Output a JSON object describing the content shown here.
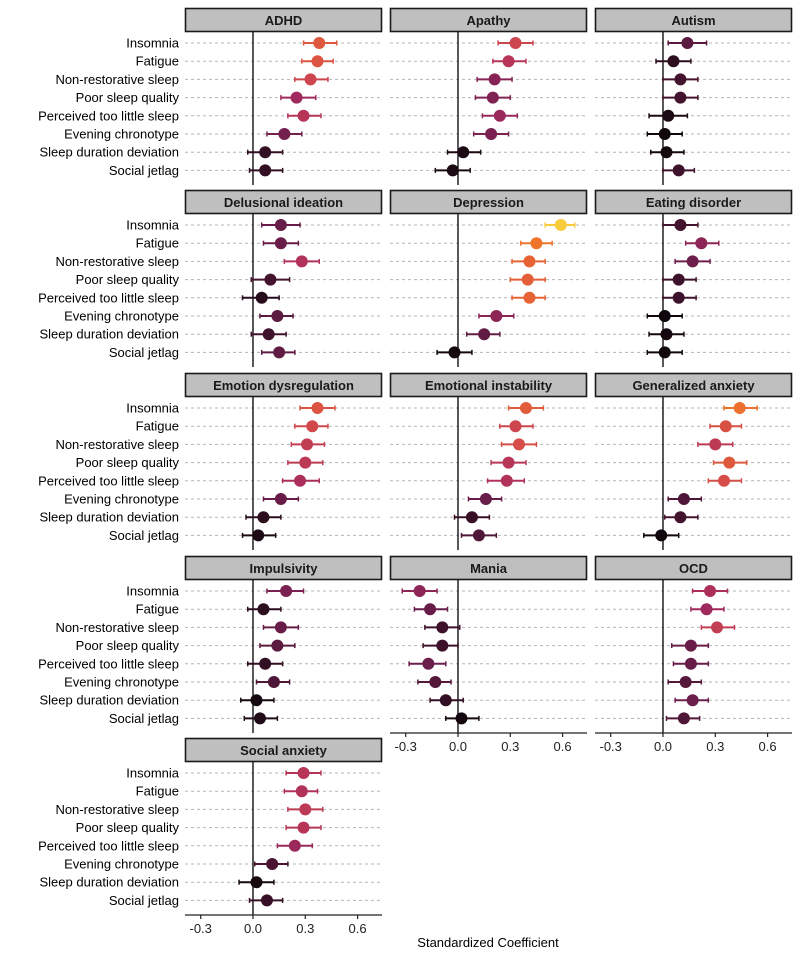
{
  "chart_data": {
    "type": "forest",
    "xlabel": "Standardized Coefficient",
    "xlim": [
      -0.39,
      0.74
    ],
    "xticks": [
      -0.3,
      0.0,
      0.3,
      0.6
    ],
    "xtick_labels": [
      "-0.3",
      "0.0",
      "0.3",
      "0.6"
    ],
    "grid": "dashed horizontal per predictor",
    "reference_line": 0,
    "color_scale": "magma by |estimate|",
    "color_stops": [
      "#0a0608",
      "#3b1128",
      "#6e1f4d",
      "#a52a5e",
      "#d44a4b",
      "#ec6a2e",
      "#f6962a",
      "#f9d23c"
    ],
    "predictors": [
      "Insomnia",
      "Fatigue",
      "Non-restorative sleep",
      "Poor sleep quality",
      "Perceived too little sleep",
      "Evening chronotype",
      "Sleep duration deviation",
      "Social jetlag"
    ],
    "panels": [
      {
        "title": "ADHD",
        "est": [
          0.38,
          0.37,
          0.33,
          0.25,
          0.29,
          0.18,
          0.07,
          0.07
        ],
        "lo": [
          0.29,
          0.28,
          0.24,
          0.16,
          0.2,
          0.08,
          -0.03,
          -0.02
        ],
        "hi": [
          0.48,
          0.46,
          0.43,
          0.36,
          0.39,
          0.28,
          0.17,
          0.17
        ]
      },
      {
        "title": "Apathy",
        "est": [
          0.33,
          0.29,
          0.21,
          0.2,
          0.24,
          0.19,
          0.03,
          -0.03
        ],
        "lo": [
          0.23,
          0.2,
          0.11,
          0.1,
          0.14,
          0.09,
          -0.06,
          -0.13
        ],
        "hi": [
          0.43,
          0.39,
          0.31,
          0.3,
          0.34,
          0.29,
          0.13,
          0.07
        ]
      },
      {
        "title": "Autism",
        "est": [
          0.14,
          0.06,
          0.1,
          0.1,
          0.03,
          0.01,
          0.02,
          0.09
        ],
        "lo": [
          0.03,
          -0.04,
          0.0,
          0.0,
          -0.08,
          -0.09,
          -0.07,
          0.0
        ],
        "hi": [
          0.25,
          0.16,
          0.2,
          0.2,
          0.14,
          0.11,
          0.12,
          0.18
        ]
      },
      {
        "title": "Delusional ideation",
        "est": [
          0.16,
          0.16,
          0.28,
          0.1,
          0.05,
          0.14,
          0.09,
          0.15
        ],
        "lo": [
          0.05,
          0.06,
          0.18,
          -0.01,
          -0.06,
          0.04,
          -0.01,
          0.05
        ],
        "hi": [
          0.27,
          0.26,
          0.38,
          0.21,
          0.15,
          0.23,
          0.19,
          0.24
        ]
      },
      {
        "title": "Depression",
        "est": [
          0.59,
          0.45,
          0.41,
          0.4,
          0.41,
          0.22,
          0.15,
          -0.02
        ],
        "lo": [
          0.5,
          0.36,
          0.31,
          0.3,
          0.31,
          0.12,
          0.05,
          -0.12
        ],
        "hi": [
          0.67,
          0.54,
          0.5,
          0.5,
          0.5,
          0.32,
          0.24,
          0.08
        ]
      },
      {
        "title": "Eating disorder",
        "est": [
          0.1,
          0.22,
          0.17,
          0.09,
          0.09,
          0.01,
          0.02,
          0.01
        ],
        "lo": [
          0.0,
          0.13,
          0.07,
          0.0,
          0.0,
          -0.09,
          -0.08,
          -0.09
        ],
        "hi": [
          0.2,
          0.32,
          0.27,
          0.19,
          0.19,
          0.11,
          0.12,
          0.11
        ]
      },
      {
        "title": "Emotion dysregulation",
        "est": [
          0.37,
          0.34,
          0.31,
          0.3,
          0.27,
          0.16,
          0.06,
          0.03
        ],
        "lo": [
          0.27,
          0.24,
          0.22,
          0.2,
          0.17,
          0.06,
          -0.04,
          -0.06
        ],
        "hi": [
          0.47,
          0.43,
          0.41,
          0.4,
          0.38,
          0.26,
          0.16,
          0.13
        ]
      },
      {
        "title": "Emotional instability",
        "est": [
          0.39,
          0.33,
          0.35,
          0.29,
          0.28,
          0.16,
          0.08,
          0.12
        ],
        "lo": [
          0.29,
          0.24,
          0.25,
          0.19,
          0.17,
          0.06,
          -0.02,
          0.02
        ],
        "hi": [
          0.49,
          0.43,
          0.45,
          0.39,
          0.38,
          0.25,
          0.18,
          0.22
        ]
      },
      {
        "title": "Generalized anxiety",
        "est": [
          0.44,
          0.36,
          0.3,
          0.38,
          0.35,
          0.12,
          0.1,
          -0.01
        ],
        "lo": [
          0.35,
          0.27,
          0.2,
          0.29,
          0.26,
          0.03,
          0.01,
          -0.11
        ],
        "hi": [
          0.54,
          0.45,
          0.4,
          0.48,
          0.45,
          0.22,
          0.2,
          0.09
        ]
      },
      {
        "title": "Impulsivity",
        "est": [
          0.19,
          0.06,
          0.16,
          0.14,
          0.07,
          0.12,
          0.02,
          0.04
        ],
        "lo": [
          0.08,
          -0.03,
          0.06,
          0.04,
          -0.03,
          0.02,
          -0.07,
          -0.05
        ],
        "hi": [
          0.29,
          0.16,
          0.26,
          0.24,
          0.17,
          0.21,
          0.12,
          0.14
        ]
      },
      {
        "title": "Mania",
        "est": [
          -0.22,
          -0.16,
          -0.09,
          -0.09,
          -0.17,
          -0.13,
          -0.07,
          0.02
        ],
        "lo": [
          -0.32,
          -0.25,
          -0.19,
          -0.2,
          -0.28,
          -0.23,
          -0.16,
          -0.07
        ],
        "hi": [
          -0.12,
          -0.06,
          0.01,
          0.0,
          -0.07,
          -0.04,
          0.03,
          0.12
        ]
      },
      {
        "title": "OCD",
        "est": [
          0.27,
          0.25,
          0.31,
          0.16,
          0.16,
          0.13,
          0.17,
          0.12
        ],
        "lo": [
          0.17,
          0.16,
          0.22,
          0.05,
          0.06,
          0.03,
          0.07,
          0.02
        ],
        "hi": [
          0.37,
          0.35,
          0.41,
          0.26,
          0.26,
          0.22,
          0.26,
          0.21
        ]
      },
      {
        "title": "Social anxiety",
        "est": [
          0.29,
          0.28,
          0.3,
          0.29,
          0.24,
          0.11,
          0.02,
          0.08
        ],
        "lo": [
          0.19,
          0.18,
          0.2,
          0.19,
          0.14,
          0.01,
          -0.08,
          -0.02
        ],
        "hi": [
          0.39,
          0.37,
          0.4,
          0.39,
          0.34,
          0.2,
          0.12,
          0.17
        ]
      }
    ]
  }
}
